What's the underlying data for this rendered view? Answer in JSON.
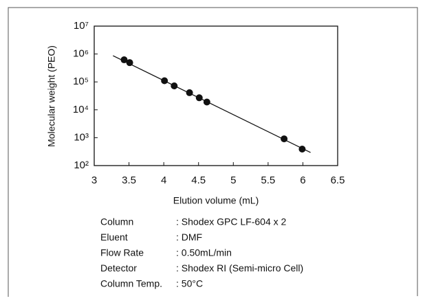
{
  "chart_data": {
    "type": "scatter",
    "y_scale": "log",
    "x_label": "Elution volume (mL)",
    "y_label": "Molecular weight (PEO)",
    "color": "#111111",
    "x": [
      3.43,
      3.51,
      4.01,
      4.15,
      4.37,
      4.51,
      4.62,
      5.73,
      5.99
    ],
    "values": [
      620000,
      490000,
      110000,
      72000,
      41000,
      27000,
      19000,
      910,
      390
    ],
    "fit_line": {
      "x": [
        3.27,
        6.11
      ],
      "values": [
        870000,
        295
      ]
    },
    "xlim": [
      3,
      6.5
    ],
    "xticks": [
      3,
      3.5,
      4,
      4.5,
      5,
      5.5,
      6,
      6.5
    ],
    "ylim": [
      100,
      10000000
    ],
    "yticks": [
      {
        "value": 100,
        "label": "10²"
      },
      {
        "value": 1000,
        "label": "10³"
      },
      {
        "value": 10000,
        "label": "10⁴"
      },
      {
        "value": 100000,
        "label": "10⁵"
      },
      {
        "value": 1000000,
        "label": "10⁶"
      },
      {
        "value": 10000000,
        "label": "10⁷"
      }
    ],
    "conditions": [
      [
        "Column",
        ": Shodex GPC LF-604 x 2"
      ],
      [
        "Eluent",
        ": DMF"
      ],
      [
        "Flow Rate",
        ": 0.50mL/min"
      ],
      [
        "Detector",
        ": Shodex RI (Semi-micro Cell)"
      ],
      [
        "Column Temp.",
        ": 50°C"
      ]
    ]
  }
}
